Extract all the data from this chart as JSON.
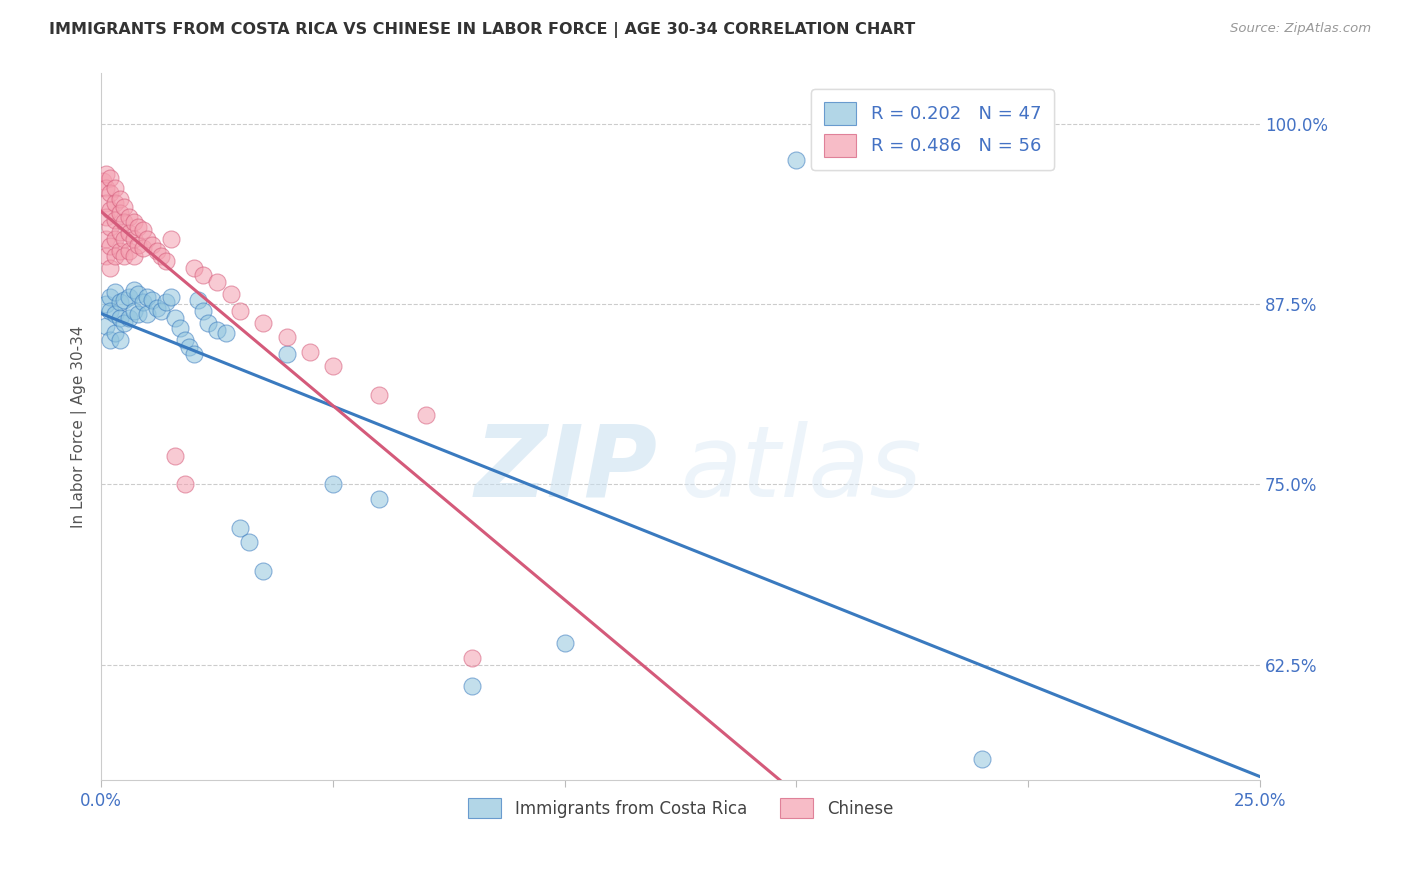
{
  "title": "IMMIGRANTS FROM COSTA RICA VS CHINESE IN LABOR FORCE | AGE 30-34 CORRELATION CHART",
  "source": "Source: ZipAtlas.com",
  "ylabel": "In Labor Force | Age 30-34",
  "ytick_labels": [
    "100.0%",
    "87.5%",
    "75.0%",
    "62.5%"
  ],
  "ytick_values": [
    1.0,
    0.875,
    0.75,
    0.625
  ],
  "legend_blue_r": "R = 0.202",
  "legend_blue_n": "N = 47",
  "legend_pink_r": "R = 0.486",
  "legend_pink_n": "N = 56",
  "legend_label_blue": "Immigrants from Costa Rica",
  "legend_label_pink": "Chinese",
  "blue_color": "#92c5de",
  "pink_color": "#f4a0b0",
  "blue_line_color": "#3a7abf",
  "pink_line_color": "#d45a7a",
  "blue_scatter_x": [
    0.001,
    0.001,
    0.002,
    0.002,
    0.002,
    0.003,
    0.003,
    0.003,
    0.004,
    0.004,
    0.004,
    0.005,
    0.005,
    0.006,
    0.006,
    0.007,
    0.007,
    0.008,
    0.008,
    0.009,
    0.01,
    0.01,
    0.011,
    0.012,
    0.013,
    0.014,
    0.015,
    0.016,
    0.017,
    0.018,
    0.019,
    0.02,
    0.021,
    0.022,
    0.023,
    0.025,
    0.027,
    0.03,
    0.032,
    0.035,
    0.04,
    0.05,
    0.06,
    0.08,
    0.1,
    0.15,
    0.19
  ],
  "blue_scatter_y": [
    0.875,
    0.86,
    0.88,
    0.87,
    0.85,
    0.883,
    0.868,
    0.855,
    0.876,
    0.865,
    0.85,
    0.878,
    0.862,
    0.88,
    0.865,
    0.885,
    0.87,
    0.882,
    0.868,
    0.876,
    0.88,
    0.868,
    0.878,
    0.872,
    0.87,
    0.876,
    0.88,
    0.865,
    0.858,
    0.85,
    0.845,
    0.84,
    0.878,
    0.87,
    0.862,
    0.857,
    0.855,
    0.72,
    0.71,
    0.69,
    0.84,
    0.75,
    0.74,
    0.61,
    0.64,
    0.975,
    0.56
  ],
  "pink_scatter_x": [
    0.0005,
    0.001,
    0.001,
    0.001,
    0.001,
    0.001,
    0.001,
    0.002,
    0.002,
    0.002,
    0.002,
    0.002,
    0.002,
    0.003,
    0.003,
    0.003,
    0.003,
    0.003,
    0.004,
    0.004,
    0.004,
    0.004,
    0.005,
    0.005,
    0.005,
    0.005,
    0.006,
    0.006,
    0.006,
    0.007,
    0.007,
    0.007,
    0.008,
    0.008,
    0.009,
    0.009,
    0.01,
    0.011,
    0.012,
    0.013,
    0.014,
    0.015,
    0.016,
    0.018,
    0.02,
    0.022,
    0.025,
    0.028,
    0.03,
    0.035,
    0.04,
    0.045,
    0.05,
    0.06,
    0.07,
    0.08
  ],
  "pink_scatter_y": [
    0.96,
    0.965,
    0.955,
    0.945,
    0.935,
    0.92,
    0.908,
    0.962,
    0.952,
    0.94,
    0.928,
    0.915,
    0.9,
    0.955,
    0.945,
    0.933,
    0.92,
    0.908,
    0.948,
    0.938,
    0.925,
    0.912,
    0.942,
    0.932,
    0.92,
    0.908,
    0.935,
    0.924,
    0.912,
    0.932,
    0.92,
    0.908,
    0.928,
    0.916,
    0.926,
    0.914,
    0.92,
    0.916,
    0.912,
    0.908,
    0.905,
    0.92,
    0.77,
    0.75,
    0.9,
    0.895,
    0.89,
    0.882,
    0.87,
    0.862,
    0.852,
    0.842,
    0.832,
    0.812,
    0.798,
    0.63
  ],
  "xmin": 0.0,
  "xmax": 0.25,
  "ymin": 0.545,
  "ymax": 1.035,
  "watermark_zip": "ZIP",
  "watermark_atlas": "atlas",
  "background_color": "#ffffff",
  "grid_color": "#cccccc",
  "title_color": "#333333",
  "source_color": "#999999",
  "tick_color": "#4472c4",
  "ylabel_color": "#555555"
}
